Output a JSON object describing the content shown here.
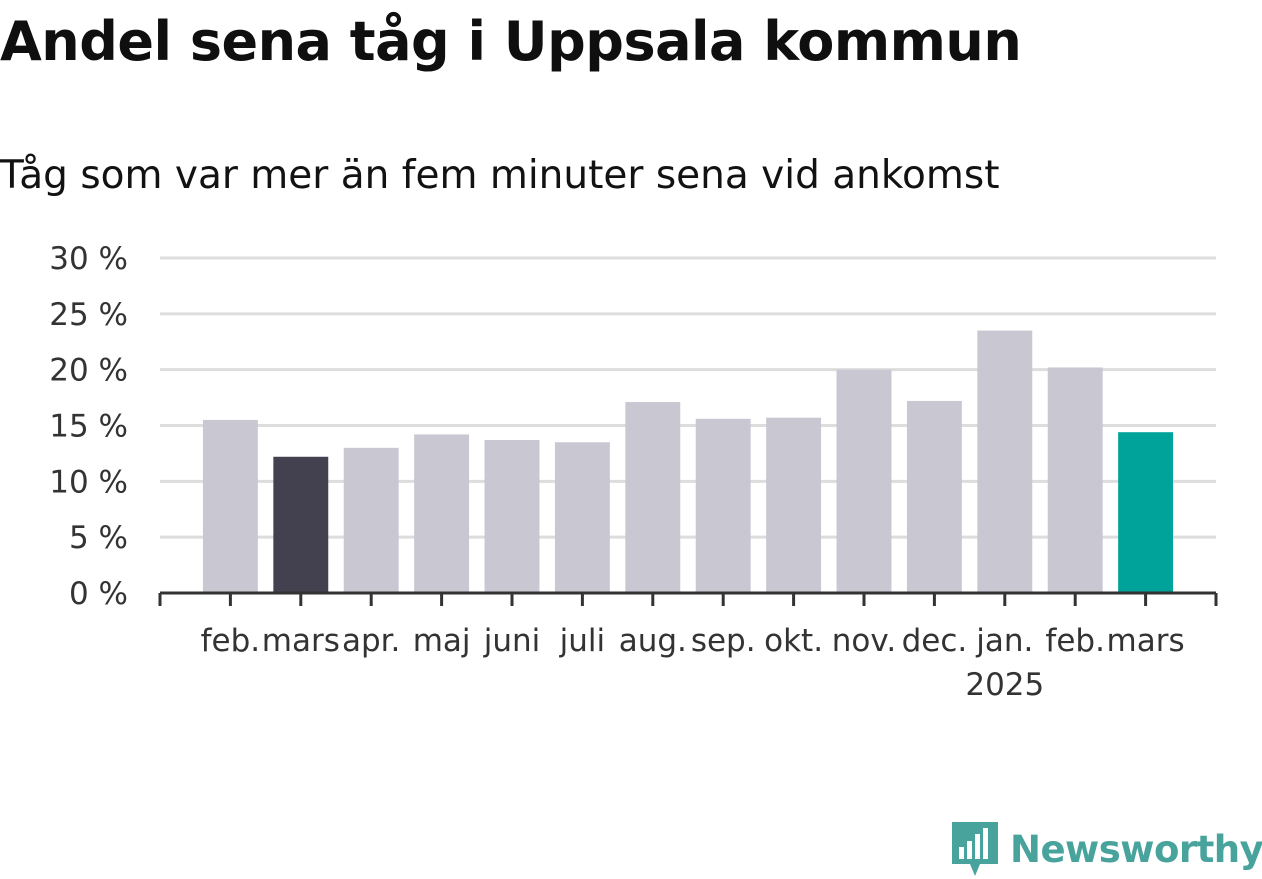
{
  "title": "Andel sena tåg i Uppsala kommun",
  "subtitle": "Tåg som var mer än fem minuter sena vid ankomst",
  "brand": {
    "name": "Newsworthy",
    "color": "#48a39c"
  },
  "colors": {
    "default_bar": "#c8c7d2",
    "highlight_past": "#43414f",
    "highlight_current": "#00a39a",
    "gridline": "#dddddd",
    "axis": "#333333"
  },
  "chart_data": {
    "type": "bar",
    "title": "",
    "xlabel": "",
    "ylabel": "",
    "ylim": [
      0,
      30
    ],
    "yticks": [
      0,
      5,
      10,
      15,
      20,
      25,
      30
    ],
    "ytick_labels": [
      "0 %",
      "5 %",
      "10 %",
      "15 %",
      "20 %",
      "25 %",
      "30 %"
    ],
    "grid": true,
    "categories": [
      "feb.",
      "mars",
      "apr.",
      "maj",
      "juni",
      "juli",
      "aug.",
      "sep.",
      "okt.",
      "nov.",
      "dec.",
      "jan.",
      "feb.",
      "mars"
    ],
    "year_labels": [
      "",
      "",
      "",
      "",
      "",
      "",
      "",
      "",
      "",
      "",
      "",
      "2025",
      "",
      ""
    ],
    "values": [
      15.5,
      12.2,
      13.0,
      14.2,
      13.7,
      13.5,
      17.1,
      15.6,
      15.7,
      20.0,
      17.2,
      23.5,
      20.2,
      14.4
    ],
    "bar_colors": [
      "#c8c7d2",
      "#43414f",
      "#c8c7d2",
      "#c8c7d2",
      "#c8c7d2",
      "#c8c7d2",
      "#c8c7d2",
      "#c8c7d2",
      "#c8c7d2",
      "#c8c7d2",
      "#c8c7d2",
      "#c8c7d2",
      "#c8c7d2",
      "#00a39a"
    ]
  }
}
